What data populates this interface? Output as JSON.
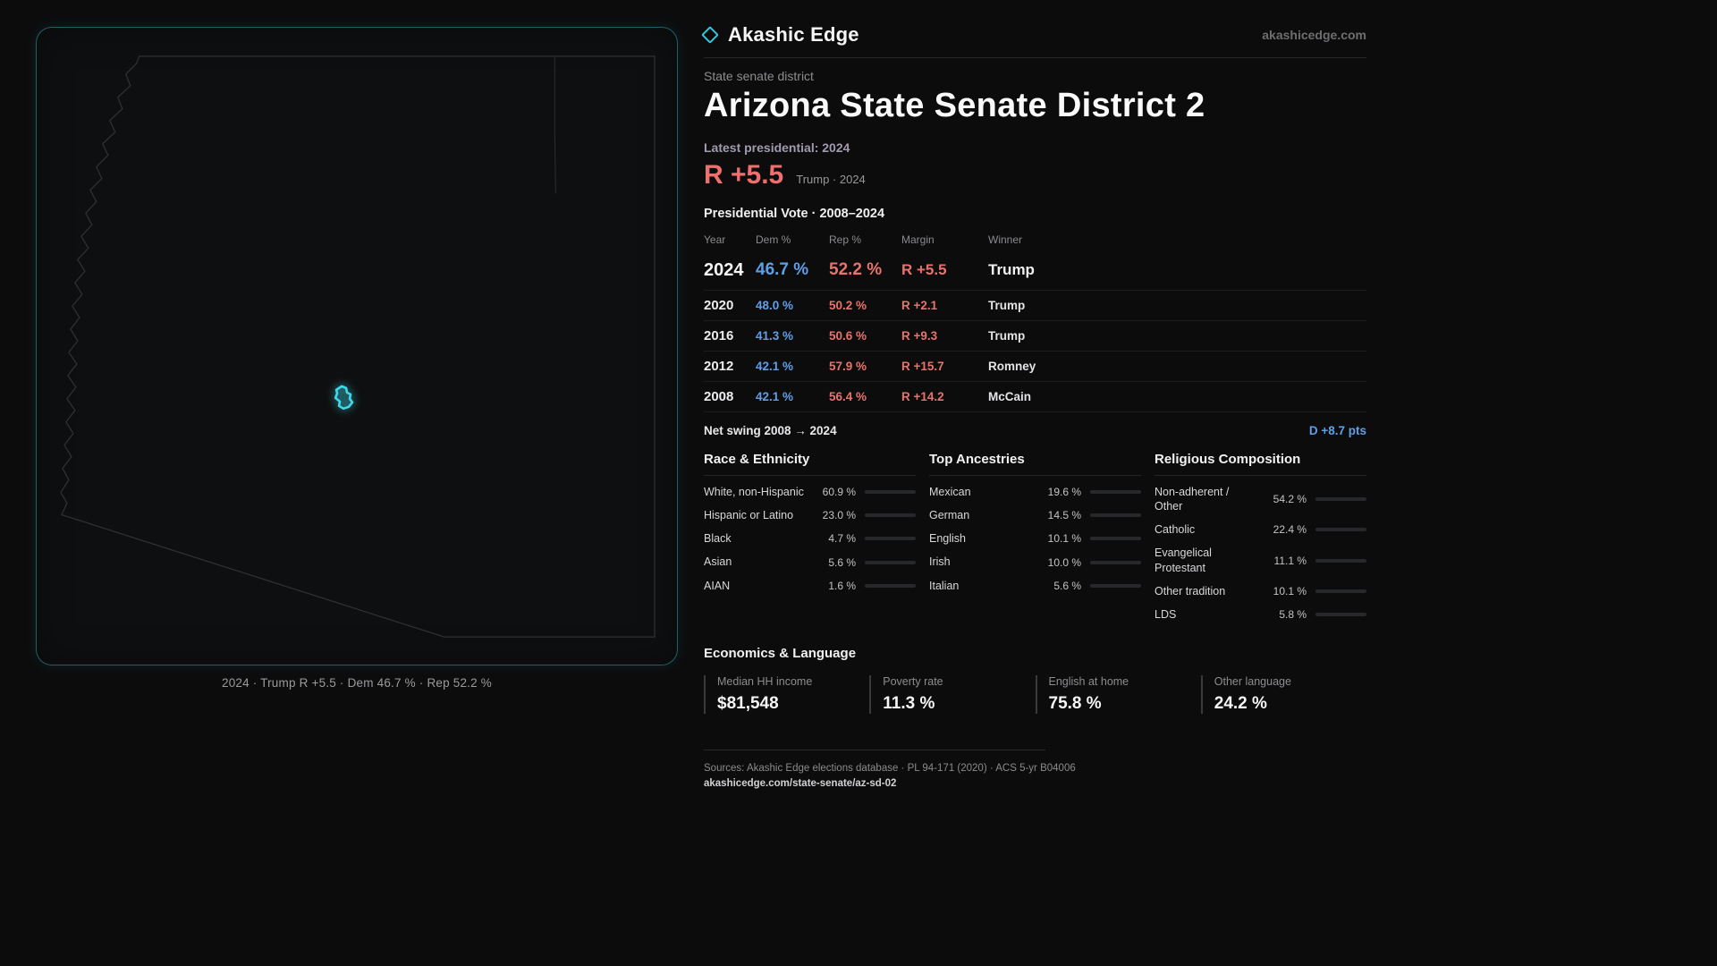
{
  "colors": {
    "accent": "#35c9dd",
    "district_highlight": "#3fd9ec",
    "dem_blue": "#5f9fe8",
    "rep_red": "#e8736c",
    "margin_red": "#ef6e6e",
    "background": "#0c0c0d"
  },
  "brand": {
    "name": "Akashic Edge",
    "site": "akashicedge.com"
  },
  "map": {
    "caption": "2024 · Trump  R +5.5 · Dem 46.7 % · Rep 52.2 %"
  },
  "header": {
    "kicker": "State senate district",
    "title": "Arizona State Senate District 2",
    "latest": "Latest presidential: 2024",
    "margin": "R +5.5",
    "margin_note": "Trump · 2024"
  },
  "vote_table": {
    "title": "Presidential Vote · 2008–2024",
    "columns": [
      "Year",
      "Dem %",
      "Rep %",
      "Margin",
      "Winner"
    ],
    "rows": [
      {
        "year": "2024",
        "dem": "46.7 %",
        "rep": "52.2 %",
        "margin": "R +5.5",
        "winner": "Trump"
      },
      {
        "year": "2020",
        "dem": "48.0 %",
        "rep": "50.2 %",
        "margin": "R +2.1",
        "winner": "Trump"
      },
      {
        "year": "2016",
        "dem": "41.3 %",
        "rep": "50.6 %",
        "margin": "R +9.3",
        "winner": "Trump"
      },
      {
        "year": "2012",
        "dem": "42.1 %",
        "rep": "57.9 %",
        "margin": "R +15.7",
        "winner": "Romney"
      },
      {
        "year": "2008",
        "dem": "42.1 %",
        "rep": "56.4 %",
        "margin": "R +14.2",
        "winner": "McCain"
      }
    ]
  },
  "net_swing": {
    "label": "Net swing 2008 → 2024",
    "value": "D +8.7 pts"
  },
  "race": {
    "title": "Race & Ethnicity",
    "items": [
      {
        "label": "White, non-Hispanic",
        "value": "60.9 %",
        "pct": 60.9,
        "color": "#b6bfd2"
      },
      {
        "label": "Hispanic or Latino",
        "value": "23.0 %",
        "pct": 23.0,
        "color": "#dda43e"
      },
      {
        "label": "Black",
        "value": "4.7 %",
        "pct": 4.7,
        "color": "#6f79d8"
      },
      {
        "label": "Asian",
        "value": "5.6 %",
        "pct": 5.6,
        "color": "#3fbd84"
      },
      {
        "label": "AIAN",
        "value": "1.6 %",
        "pct": 1.6,
        "color": "#b65f47"
      }
    ]
  },
  "ancestries": {
    "title": "Top Ancestries",
    "items": [
      {
        "label": "Mexican",
        "value": "19.6 %",
        "pct": 19.6,
        "color": "#dda43e"
      },
      {
        "label": "German",
        "value": "14.5 %",
        "pct": 14.5,
        "color": "#7f93b2"
      },
      {
        "label": "English",
        "value": "10.1 %",
        "pct": 10.1,
        "color": "#98a0a8"
      },
      {
        "label": "Irish",
        "value": "10.0 %",
        "pct": 10.0,
        "color": "#6b87c8"
      },
      {
        "label": "Italian",
        "value": "5.6 %",
        "pct": 5.6,
        "color": "#98a0a8"
      }
    ]
  },
  "religion": {
    "title": "Religious Composition",
    "items": [
      {
        "label": "Non-adherent / Other",
        "value": "54.2 %",
        "pct": 54.2,
        "color": "#98a0a8"
      },
      {
        "label": "Catholic",
        "value": "22.4 %",
        "pct": 22.4,
        "color": "#ddb03e"
      },
      {
        "label": "Evangelical Protestant",
        "value": "11.1 %",
        "pct": 11.1,
        "color": "#e2766f"
      },
      {
        "label": "Other tradition",
        "value": "10.1 %",
        "pct": 10.1,
        "color": "#98a0a8"
      },
      {
        "label": "LDS",
        "value": "5.8 %",
        "pct": 5.8,
        "color": "#3fc9dd"
      }
    ]
  },
  "economics": {
    "title": "Economics & Language",
    "stats": [
      {
        "label": "Median HH income",
        "value": "$81,548"
      },
      {
        "label": "Poverty rate",
        "value": "11.3 %"
      },
      {
        "label": "English at home",
        "value": "75.8 %"
      },
      {
        "label": "Other language",
        "value": "24.2 %"
      }
    ]
  },
  "footer": {
    "sources": "Sources: Akashic Edge elections database · PL 94-171 (2020) · ACS 5-yr B04006",
    "permalink": "akashicedge.com/state-senate/az-sd-02"
  },
  "chart_data": [
    {
      "type": "table",
      "title": "Presidential Vote · 2008–2024",
      "columns": [
        "Year",
        "Dem %",
        "Rep %",
        "Margin",
        "Winner"
      ],
      "rows": [
        [
          "2024",
          46.7,
          52.2,
          "R +5.5",
          "Trump"
        ],
        [
          "2020",
          48.0,
          50.2,
          "R +2.1",
          "Trump"
        ],
        [
          "2016",
          41.3,
          50.6,
          "R +9.3",
          "Trump"
        ],
        [
          "2012",
          42.1,
          57.9,
          "R +15.7",
          "Romney"
        ],
        [
          "2008",
          42.1,
          56.4,
          "R +14.2",
          "McCain"
        ]
      ],
      "annotations": [
        "Net swing 2008 → 2024: D +8.7 pts",
        "Latest presidential 2024: R +5.5 (Trump)"
      ]
    },
    {
      "type": "bar",
      "title": "Race & Ethnicity",
      "orientation": "horizontal",
      "categories": [
        "White, non-Hispanic",
        "Hispanic or Latino",
        "Black",
        "Asian",
        "AIAN"
      ],
      "values": [
        60.9,
        23.0,
        4.7,
        5.6,
        1.6
      ],
      "unit": "%",
      "xlim": [
        0,
        100
      ]
    },
    {
      "type": "bar",
      "title": "Top Ancestries",
      "orientation": "horizontal",
      "categories": [
        "Mexican",
        "German",
        "English",
        "Irish",
        "Italian"
      ],
      "values": [
        19.6,
        14.5,
        10.1,
        10.0,
        5.6
      ],
      "unit": "%",
      "xlim": [
        0,
        100
      ]
    },
    {
      "type": "bar",
      "title": "Religious Composition",
      "orientation": "horizontal",
      "categories": [
        "Non-adherent / Other",
        "Catholic",
        "Evangelical Protestant",
        "Other tradition",
        "LDS"
      ],
      "values": [
        54.2,
        22.4,
        11.1,
        10.1,
        5.8
      ],
      "unit": "%",
      "xlim": [
        0,
        100
      ]
    },
    {
      "type": "table",
      "title": "Economics & Language",
      "columns": [
        "Median HH income",
        "Poverty rate",
        "English at home",
        "Other language"
      ],
      "rows": [
        [
          "$81,548",
          "11.3 %",
          "75.8 %",
          "24.2 %"
        ]
      ]
    }
  ]
}
